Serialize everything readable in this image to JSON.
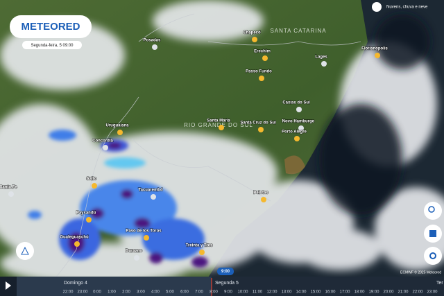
{
  "header": {
    "logo": "METEORED",
    "date": "Segunda-feira, 5 09:00",
    "layer": "Nuvens, chuva e neve"
  },
  "regions": [
    "SANTA CATARINA",
    "RIO GRANDE DO SUL"
  ],
  "cities": [
    "Posadas",
    "Chapecó",
    "Erechim",
    "Lages",
    "Passo Fundo",
    "Florianópolis",
    "Caxias do Sul",
    "Santa Maria",
    "Santa Cruz do Sul",
    "Novo Hamburgo",
    "Porto Alegre",
    "Uruguaiana",
    "Concordia",
    "Salto",
    "Paysandú",
    "Tacuarembó",
    "Gualeguaychú",
    "Paso de los Toros",
    "Durazno",
    "Treinta y Tres",
    "Pelotas",
    "Santa Fe"
  ],
  "attribution": "ECMWF © 2025 Meteored",
  "timeline": {
    "current": "9:00",
    "days": [
      "Domingo 4",
      "Segunda 5",
      "Ter"
    ],
    "hours": [
      "22:00",
      "23:00",
      "0:00",
      "1:00",
      "2:00",
      "3:00",
      "4:00",
      "5:00",
      "6:00",
      "7:00",
      "8:00",
      "9:00",
      "10:00",
      "11:00",
      "12:00",
      "13:00",
      "14:00",
      "15:00",
      "16:00",
      "17:00",
      "18:00",
      "19:00",
      "20:00",
      "21:00",
      "22:00",
      "23:00"
    ]
  }
}
